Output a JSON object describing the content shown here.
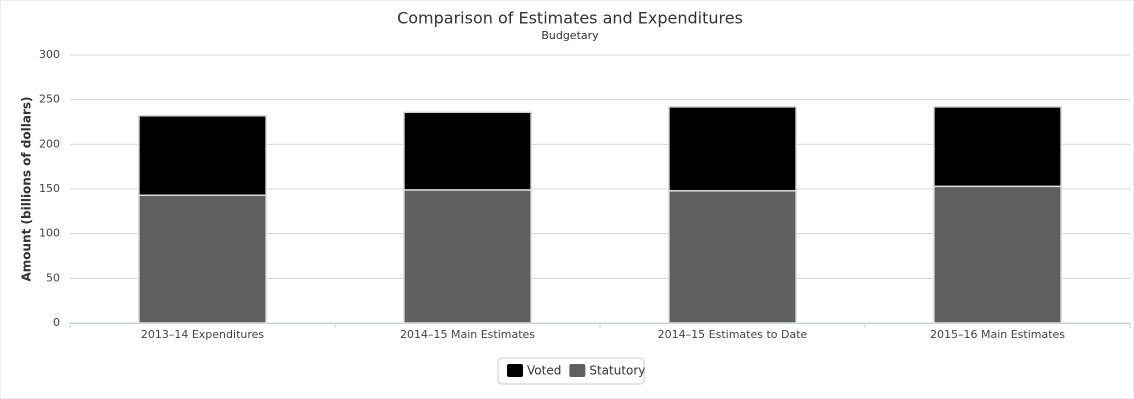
{
  "chart_data": {
    "type": "stacked_bar",
    "title": "Comparison of Estimates and Expenditures",
    "subtitle": "Budgetary",
    "y_label": "Amount (billions of dollars)",
    "categories": [
      "2013–14 Expenditures",
      "2014–15 Main Estimates",
      "2014–15 Estimates to Date",
      "2015–16 Main Estimates"
    ],
    "series": [
      {
        "name": "Voted",
        "color": "#000000",
        "values": [
          89,
          87,
          94,
          89
        ]
      },
      {
        "name": "Statutory",
        "color": "#5f5f5f",
        "values": [
          143,
          149,
          148,
          153
        ]
      }
    ],
    "ylim": [
      0,
      300
    ],
    "yticks": [
      0,
      50,
      100,
      150,
      200,
      250,
      300
    ],
    "grid": true
  }
}
